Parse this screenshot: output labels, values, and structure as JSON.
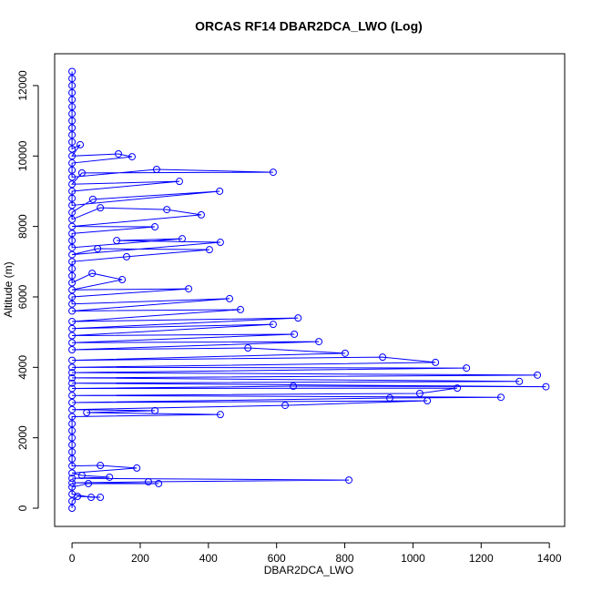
{
  "chart_data": {
    "type": "line",
    "marker": "circle",
    "color": "#0000ff",
    "title": "ORCAS RF14 DBAR2DCA_LWO (Log)",
    "x_label": "DBAR2DCA_LWO",
    "y_label": "Altitude (m)",
    "xlim": [
      -51,
      1445
    ],
    "ylim": [
      -517,
      12904
    ],
    "xticks": [
      0,
      200,
      400,
      600,
      800,
      1000,
      1200,
      1400
    ],
    "yticks": [
      0,
      2000,
      4000,
      6000,
      8000,
      10000,
      12000
    ],
    "x": [
      0,
      0,
      16,
      83,
      56,
      0,
      0,
      48,
      254,
      0,
      224,
      812,
      0,
      110,
      29,
      0,
      190,
      83,
      0,
      0,
      0,
      0,
      0,
      0,
      0,
      0,
      435,
      43,
      243,
      0,
      625,
      1042,
      0,
      932,
      1258,
      0,
      1020,
      1130,
      0,
      649,
      1390,
      0,
      1312,
      0,
      1365,
      0,
      1157,
      0,
      1066,
      911,
      0,
      801,
      516,
      0,
      724,
      0,
      652,
      0,
      590,
      0,
      663,
      0,
      494,
      0,
      462,
      0,
      0,
      342,
      0,
      147,
      59,
      0,
      0,
      0,
      0,
      160,
      403,
      75,
      0,
      435,
      131,
      323,
      0,
      0,
      0,
      243,
      0,
      379,
      278,
      83,
      0,
      0,
      61,
      433,
      0,
      0,
      0,
      315,
      0,
      29,
      590,
      248,
      0,
      0,
      0,
      176,
      136,
      0,
      24,
      0,
      0,
      0,
      0,
      0,
      0,
      0,
      0,
      0,
      0,
      0,
      0
    ],
    "values": [
      0,
      200,
      336,
      310,
      310,
      400,
      600,
      700,
      700,
      720,
      750,
      800,
      850,
      880,
      930,
      1000,
      1140,
      1215,
      1200,
      1400,
      1600,
      1800,
      2000,
      2200,
      2400,
      2600,
      2660,
      2715,
      2770,
      2800,
      2920,
      3050,
      3000,
      3130,
      3150,
      3200,
      3260,
      3410,
      3400,
      3465,
      3450,
      3550,
      3600,
      3700,
      3780,
      3850,
      3980,
      4000,
      4140,
      4290,
      4200,
      4400,
      4550,
      4500,
      4730,
      4700,
      4940,
      4900,
      5220,
      5100,
      5400,
      5300,
      5640,
      5600,
      5950,
      5800,
      6000,
      6230,
      6200,
      6490,
      6670,
      6400,
      6600,
      6800,
      7000,
      7140,
      7340,
      7370,
      7200,
      7550,
      7600,
      7650,
      7400,
      7600,
      7800,
      7990,
      8000,
      8330,
      8480,
      8530,
      8200,
      8400,
      8770,
      9000,
      8600,
      8800,
      9000,
      9280,
      9200,
      9520,
      9540,
      9620,
      9400,
      9600,
      9800,
      9980,
      10060,
      10000,
      10320,
      10200,
      10400,
      10600,
      10800,
      11000,
      11200,
      11400,
      11600,
      11800,
      12000,
      12200,
      12400
    ]
  }
}
